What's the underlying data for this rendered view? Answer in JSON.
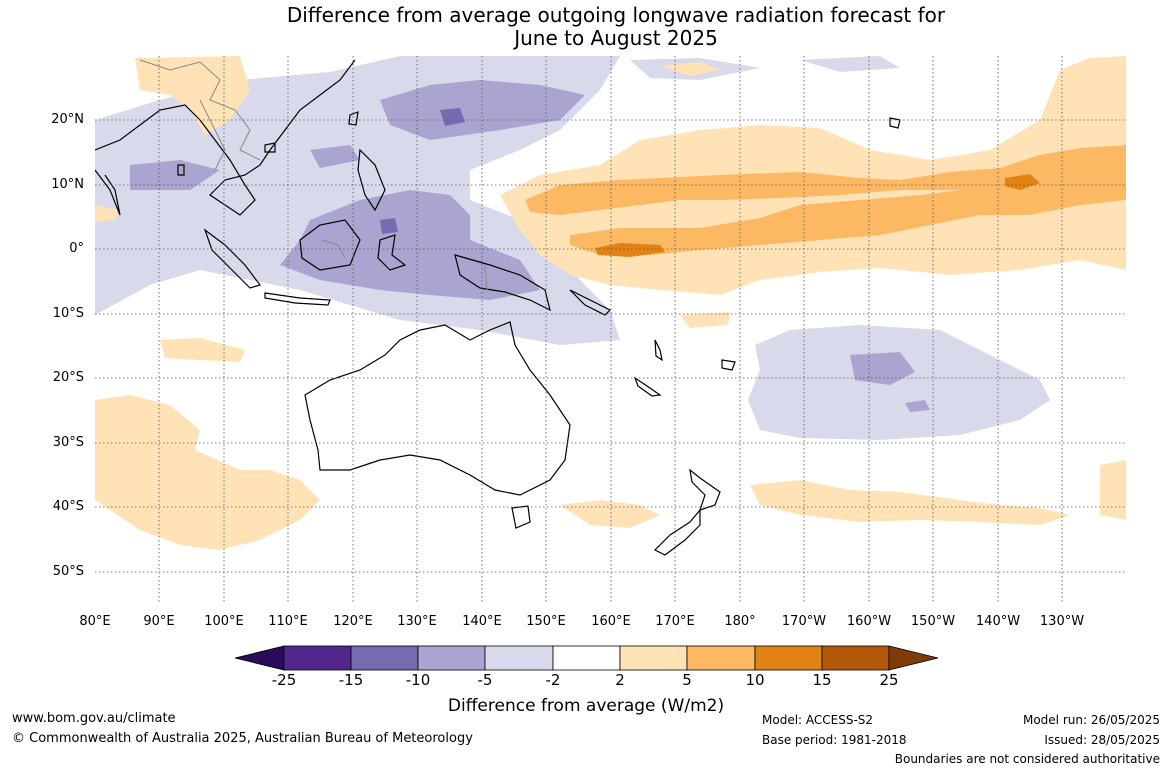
{
  "title": {
    "line1": "Difference from average outgoing longwave radiation forecast for",
    "line2": "June to August 2025"
  },
  "map": {
    "lat_labels": [
      "20°N",
      "10°N",
      "0°",
      "10°S",
      "20°S",
      "30°S",
      "40°S",
      "50°S"
    ],
    "lon_labels": [
      "80°E",
      "90°E",
      "100°E",
      "110°E",
      "120°E",
      "130°E",
      "140°E",
      "150°E",
      "160°E",
      "170°E",
      "180°",
      "170°W",
      "160°W",
      "150°W",
      "140°W",
      "130°W"
    ],
    "lat_range": [
      -55,
      30
    ],
    "lon_range": [
      80,
      240
    ],
    "grid": true
  },
  "colorbar": {
    "ticks": [
      "-25",
      "-15",
      "-10",
      "-5",
      "-2",
      "2",
      "5",
      "10",
      "15",
      "25"
    ],
    "colors": [
      "#2b0a5a",
      "#54278f",
      "#756bb1",
      "#aaa4d0",
      "#d9d9ec",
      "#ffffff",
      "#ffe3b6",
      "#fdb863",
      "#e08214",
      "#b35806",
      "#7f3b08"
    ],
    "label": "Difference from average (W/m2)"
  },
  "footer": {
    "website": "www.bom.gov.au/climate",
    "copyright": "© Commonwealth of Australia 2025, Australian Bureau of Meteorology",
    "model": "Model: ACCESS-S2",
    "base_period": "Base period: 1981-2018",
    "model_run": "Model run: 26/05/2025",
    "issued": "Issued: 28/05/2025",
    "boundaries_note": "Boundaries are not considered authoritative"
  }
}
